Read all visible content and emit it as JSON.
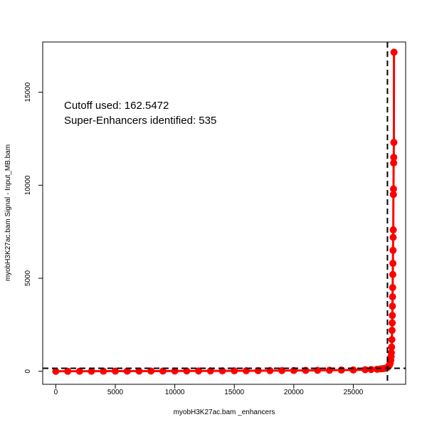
{
  "chart_data": {
    "type": "line",
    "title": "",
    "xlabel": "myobH3K27ac.bam _enhancers",
    "ylabel": "myobH3K27ac.bam  Signal - Input_MB.bam",
    "xlim": [
      -1100,
      29400
    ],
    "ylim": [
      -700,
      17700
    ],
    "x_ticks": [
      0,
      5000,
      10000,
      15000,
      20000,
      25000
    ],
    "y_ticks": [
      0,
      5000,
      10000,
      15000
    ],
    "grid": false,
    "legend": "none",
    "series_color": "#ff0000",
    "cutoff_x": 27870,
    "cutoff_y": 162.5472,
    "annotations": [
      "Cutoff used:  162.5472",
      "Super-Enhancers identified:  535"
    ],
    "series": [
      {
        "x": [
          0,
          1000,
          2000,
          3000,
          4000,
          5000,
          6000,
          7000,
          8000,
          9000,
          10000,
          11000,
          12000,
          13000,
          14000,
          15000,
          16000,
          17000,
          18000,
          19000,
          20000,
          21000,
          22000,
          23000,
          24000,
          25000,
          26000,
          26500,
          27000,
          27300,
          27500,
          27700,
          27850,
          27950,
          28050,
          28100,
          28150,
          28180,
          28200,
          28220,
          28240,
          28260,
          28270,
          28280,
          28290,
          28300,
          28310,
          28320,
          28330,
          28340,
          28350,
          28360,
          28370,
          28380,
          28390,
          28400,
          28410,
          28420
        ],
        "y": [
          0,
          1,
          3,
          4,
          6,
          7,
          9,
          10,
          12,
          13,
          15,
          17,
          19,
          21,
          23,
          25,
          28,
          31,
          34,
          37,
          41,
          45,
          50,
          56,
          63,
          72,
          85,
          95,
          110,
          125,
          140,
          162,
          200,
          260,
          350,
          450,
          600,
          800,
          1000,
          1300,
          1700,
          2200,
          2600,
          3000,
          3500,
          4000,
          4500,
          5200,
          5800,
          6500,
          7200,
          7600,
          9500,
          9800,
          11200,
          11500,
          12300,
          17150
        ]
      }
    ]
  }
}
